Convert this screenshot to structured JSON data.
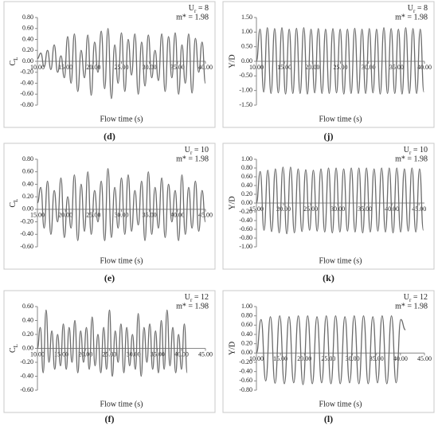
{
  "chart_data": [
    {
      "type": "line",
      "panel_label": "(d)",
      "annotation_ur": {
        "symbol": "U",
        "subscript": "r",
        "value_text": " = 8"
      },
      "annotation_mass": "m* = 1.98",
      "ylabel": {
        "symbol": "C",
        "subscript": "L"
      },
      "xlabel": "Flow time (s)",
      "xlim": [
        10,
        40
      ],
      "ylim": [
        -0.8,
        0.8
      ],
      "xticks": [
        {
          "value": 10,
          "label": "10.00"
        },
        {
          "value": 15,
          "label": "15.00"
        },
        {
          "value": 20,
          "label": "20.00"
        },
        {
          "value": 25,
          "label": "25.00"
        },
        {
          "value": 30,
          "label": "30.00"
        },
        {
          "value": 35,
          "label": "35.00"
        },
        {
          "value": 40,
          "label": "40.00"
        }
      ],
      "yticks": [
        {
          "value": -0.8,
          "label": "-0.80"
        },
        {
          "value": -0.6,
          "label": "-0.60"
        },
        {
          "value": -0.4,
          "label": "-0.40"
        },
        {
          "value": -0.2,
          "label": "-0.20"
        },
        {
          "value": 0,
          "label": "0.00"
        },
        {
          "value": 0.2,
          "label": "0.20"
        },
        {
          "value": 0.4,
          "label": "0.40"
        },
        {
          "value": 0.6,
          "label": "0.60"
        },
        {
          "value": 0.8,
          "label": "0.80"
        }
      ],
      "color": "#6b6b6b",
      "x": [
        10,
        10.6,
        11.2,
        11.8,
        12.4,
        13,
        13.6,
        14.2,
        14.8,
        15.4,
        16,
        16.6,
        17.2,
        17.8,
        18.4,
        19,
        19.6,
        20.2,
        20.8,
        21.4,
        22,
        22.6,
        23.2,
        23.8,
        24.4,
        25,
        25.6,
        26.2,
        26.8,
        27.4,
        28,
        28.6,
        29.2,
        29.8,
        30.4,
        31,
        31.6,
        32.2,
        32.8,
        33.4,
        34,
        34.6,
        35.2,
        35.8,
        36.4,
        37,
        37.6,
        38.2,
        38.8,
        39.4,
        40
      ],
      "values": [
        0.05,
        0.15,
        -0.1,
        0.2,
        -0.15,
        0.3,
        -0.2,
        0.1,
        -0.3,
        0.45,
        -0.4,
        0.5,
        -0.55,
        0.2,
        -0.3,
        0.48,
        -0.62,
        0.35,
        -0.2,
        0.55,
        -0.5,
        0.6,
        -0.68,
        0.3,
        -0.4,
        0.52,
        -0.55,
        0.4,
        -0.25,
        0.5,
        -0.6,
        0.35,
        -0.45,
        0.48,
        -0.3,
        0.2,
        -0.35,
        0.5,
        -0.55,
        0.45,
        -0.3,
        0.52,
        -0.6,
        0.3,
        -0.4,
        0.5,
        -0.58,
        0.42,
        -0.2,
        0.35,
        -0.4
      ]
    },
    {
      "type": "line",
      "panel_label": "(j)",
      "annotation_ur": {
        "symbol": "U",
        "subscript": "r",
        "value_text": " = 8"
      },
      "annotation_mass": "m* = 1.98",
      "ylabel": "Y/D",
      "xlabel": "Flow time (s)",
      "xlim": [
        10,
        40
      ],
      "ylim": [
        -1.5,
        1.5
      ],
      "xticks": [
        {
          "value": 10,
          "label": "10.00"
        },
        {
          "value": 15,
          "label": "15.00"
        },
        {
          "value": 20,
          "label": "20.00"
        },
        {
          "value": 25,
          "label": "25.00"
        },
        {
          "value": 30,
          "label": "30.00"
        },
        {
          "value": 35,
          "label": "35.00"
        },
        {
          "value": 40,
          "label": "40.00"
        }
      ],
      "yticks": [
        {
          "value": -1.5,
          "label": "-1.50"
        },
        {
          "value": -1,
          "label": "-1.00"
        },
        {
          "value": -0.5,
          "label": "-0.50"
        },
        {
          "value": 0,
          "label": "0.00"
        },
        {
          "value": 0.5,
          "label": "0.50"
        },
        {
          "value": 1,
          "label": "1.00"
        },
        {
          "value": 1.5,
          "label": "1.50"
        }
      ],
      "color": "#6b6b6b",
      "x": [
        10,
        10.65,
        11.3,
        11.95,
        12.6,
        13.25,
        13.9,
        14.55,
        15.2,
        15.85,
        16.5,
        17.15,
        17.8,
        18.45,
        19.1,
        19.75,
        20.4,
        21.05,
        21.7,
        22.35,
        23,
        23.65,
        24.3,
        24.95,
        25.6,
        26.25,
        26.9,
        27.55,
        28.2,
        28.85,
        29.5,
        30.15,
        30.8,
        31.45,
        32.1,
        32.75,
        33.4,
        34.05,
        34.7,
        35.35,
        36,
        36.65,
        37.3,
        37.95,
        38.6,
        39.25,
        39.9
      ],
      "values": [
        0,
        1.1,
        -1.05,
        1.15,
        -1.1,
        1.12,
        -1.08,
        1.15,
        -1.12,
        1.1,
        -1.1,
        1.13,
        -1.1,
        1.15,
        -1.12,
        1.1,
        -1.08,
        1.12,
        -1.1,
        1.1,
        -1.1,
        1.12,
        -1.08,
        1.1,
        -1.12,
        1.1,
        -1.1,
        1.13,
        -1.1,
        1.1,
        -1.1,
        1.12,
        -1.08,
        1.1,
        -1.12,
        1.15,
        -1.1,
        1.12,
        -1.1,
        1.1,
        -1.12,
        1.15,
        -1.1,
        1.12,
        -1.1,
        1.1,
        -1.05
      ]
    },
    {
      "type": "line",
      "panel_label": "(e)",
      "annotation_ur": {
        "symbol": "U",
        "subscript": "r",
        "value_text": " = 10"
      },
      "annotation_mass": "m* = 1.98",
      "ylabel": {
        "symbol": "C",
        "subscript": "L"
      },
      "xlabel": "Flow time (s)",
      "xlim": [
        15,
        45
      ],
      "ylim": [
        -0.6,
        0.8
      ],
      "xticks": [
        {
          "value": 15,
          "label": "15.00"
        },
        {
          "value": 20,
          "label": "20.00"
        },
        {
          "value": 25,
          "label": "25.00"
        },
        {
          "value": 30,
          "label": "30.00"
        },
        {
          "value": 35,
          "label": "35.00"
        },
        {
          "value": 40,
          "label": "40.00"
        },
        {
          "value": 45,
          "label": "45.00"
        }
      ],
      "yticks": [
        {
          "value": -0.6,
          "label": "-0.60"
        },
        {
          "value": -0.4,
          "label": "-0.40"
        },
        {
          "value": -0.2,
          "label": "-0.20"
        },
        {
          "value": 0,
          "label": "0.00"
        },
        {
          "value": 0.2,
          "label": "0.20"
        },
        {
          "value": 0.4,
          "label": "0.40"
        },
        {
          "value": 0.6,
          "label": "0.60"
        },
        {
          "value": 0.8,
          "label": "0.80"
        }
      ],
      "color": "#6b6b6b",
      "x": [
        15,
        15.6,
        16.2,
        16.8,
        17.4,
        18,
        18.6,
        19.2,
        19.8,
        20.4,
        21,
        21.6,
        22.2,
        22.8,
        23.4,
        24,
        24.6,
        25.2,
        25.8,
        26.4,
        27,
        27.6,
        28.2,
        28.8,
        29.4,
        30,
        30.6,
        31.2,
        31.8,
        32.4,
        33,
        33.6,
        34.2,
        34.8,
        35.4,
        36,
        36.6,
        37.2,
        37.8,
        38.4,
        39,
        39.6,
        40.2,
        40.8,
        41.4,
        42,
        42.6,
        43.2,
        43.8,
        44.4,
        45
      ],
      "values": [
        0.1,
        0.35,
        -0.3,
        0.45,
        -0.4,
        0.3,
        -0.2,
        0.5,
        -0.45,
        0.2,
        -0.3,
        0.55,
        -0.5,
        0.4,
        -0.35,
        0.6,
        -0.4,
        0.3,
        -0.2,
        0.45,
        -0.5,
        0.65,
        -0.45,
        0.35,
        -0.3,
        0.5,
        -0.4,
        0.55,
        -0.35,
        0.3,
        -0.25,
        0.45,
        -0.5,
        0.6,
        -0.4,
        0.35,
        -0.3,
        0.5,
        -0.45,
        0.4,
        -0.2,
        0.3,
        -0.5,
        0.55,
        -0.4,
        0.35,
        -0.3,
        0.45,
        -0.35,
        0.3,
        -0.2
      ]
    },
    {
      "type": "line",
      "panel_label": "(k)",
      "annotation_ur": {
        "symbol": "U",
        "subscript": "r",
        "value_text": " = 10"
      },
      "annotation_mass": "m* = 1.98",
      "ylabel": "Y/D",
      "xlabel": "Flow time (s)",
      "xlim": [
        15,
        46
      ],
      "ylim": [
        -1,
        1
      ],
      "xticks": [
        {
          "value": 15,
          "label": "15.00"
        },
        {
          "value": 20,
          "label": "20.00"
        },
        {
          "value": 25,
          "label": "25.00"
        },
        {
          "value": 30,
          "label": "30.00"
        },
        {
          "value": 35,
          "label": "35.00"
        },
        {
          "value": 40,
          "label": "40.00"
        },
        {
          "value": 45,
          "label": "45.00"
        }
      ],
      "yticks": [
        {
          "value": -1,
          "label": "-1.00"
        },
        {
          "value": -0.8,
          "label": "-0.80"
        },
        {
          "value": -0.6,
          "label": "-0.60"
        },
        {
          "value": -0.4,
          "label": "-0.40"
        },
        {
          "value": -0.2,
          "label": "-0.20"
        },
        {
          "value": 0,
          "label": "0.00"
        },
        {
          "value": 0.2,
          "label": "0.20"
        },
        {
          "value": 0.4,
          "label": "0.40"
        },
        {
          "value": 0.6,
          "label": "0.60"
        },
        {
          "value": 0.8,
          "label": "0.80"
        },
        {
          "value": 1,
          "label": "1.00"
        }
      ],
      "color": "#6b6b6b",
      "x": [
        15,
        15.7,
        16.4,
        17.1,
        17.8,
        18.5,
        19.2,
        19.9,
        20.6,
        21.3,
        22,
        22.7,
        23.4,
        24.1,
        24.8,
        25.5,
        26.2,
        26.9,
        27.6,
        28.3,
        29,
        29.7,
        30.4,
        31.1,
        31.8,
        32.5,
        33.2,
        33.9,
        34.6,
        35.3,
        36,
        36.7,
        37.4,
        38.1,
        38.8,
        39.5,
        40.2,
        40.9,
        41.6,
        42.3,
        43,
        43.7,
        44.4,
        45.1,
        45.8
      ],
      "values": [
        0,
        0.72,
        -0.62,
        0.75,
        -0.65,
        0.78,
        -0.68,
        0.82,
        -0.7,
        0.82,
        -0.68,
        0.78,
        -0.65,
        0.76,
        -0.62,
        0.75,
        -0.64,
        0.78,
        -0.66,
        0.8,
        -0.68,
        0.8,
        -0.66,
        0.78,
        -0.64,
        0.8,
        -0.66,
        0.8,
        -0.68,
        0.8,
        -0.66,
        0.78,
        -0.64,
        0.8,
        -0.66,
        0.8,
        -0.68,
        0.8,
        -0.66,
        0.78,
        -0.64,
        0.8,
        -0.66,
        0.78,
        -0.62
      ]
    },
    {
      "type": "line",
      "panel_label": "(f)",
      "annotation_ur": {
        "symbol": "U",
        "subscript": "r",
        "value_text": " = 12"
      },
      "annotation_mass": "m* = 1.98",
      "ylabel": {
        "symbol": "C",
        "subscript": "L"
      },
      "xlabel": "Flow time (s)",
      "xlim": [
        10,
        45
      ],
      "ylim": [
        -0.6,
        0.6
      ],
      "xticks": [
        {
          "value": 10,
          "label": "10.00"
        },
        {
          "value": 15,
          "label": "15.00"
        },
        {
          "value": 20,
          "label": "20.00"
        },
        {
          "value": 25,
          "label": "25.00"
        },
        {
          "value": 30,
          "label": "30.00"
        },
        {
          "value": 35,
          "label": "35.00"
        },
        {
          "value": 40,
          "label": "40.00"
        },
        {
          "value": 45,
          "label": "45.00"
        }
      ],
      "yticks": [
        {
          "value": -0.6,
          "label": "-0.60"
        },
        {
          "value": -0.4,
          "label": "-0.40"
        },
        {
          "value": -0.2,
          "label": "-0.20"
        },
        {
          "value": 0,
          "label": "0.00"
        },
        {
          "value": 0.2,
          "label": "0.20"
        },
        {
          "value": 0.4,
          "label": "0.40"
        },
        {
          "value": 0.6,
          "label": "0.60"
        }
      ],
      "color": "#6b6b6b",
      "x": [
        10,
        10.6,
        11.2,
        11.8,
        12.4,
        13,
        13.6,
        14.2,
        14.8,
        15.4,
        16,
        16.6,
        17.2,
        17.8,
        18.4,
        19,
        19.6,
        20.2,
        20.8,
        21.4,
        22,
        22.6,
        23.2,
        23.8,
        24.4,
        25,
        25.6,
        26.2,
        26.8,
        27.4,
        28,
        28.6,
        29.2,
        29.8,
        30.4,
        31,
        31.6,
        32.2,
        32.8,
        33.4,
        34,
        34.6,
        35.2,
        35.8,
        36.4,
        37,
        37.6,
        38.2,
        38.8,
        39.4,
        40,
        40.6,
        41.2
      ],
      "values": [
        0,
        0.3,
        -0.35,
        0.55,
        -0.2,
        0.25,
        -0.3,
        0.2,
        -0.25,
        0.35,
        -0.3,
        0.3,
        -0.2,
        0.4,
        -0.35,
        0.25,
        -0.2,
        0.3,
        -0.3,
        0.45,
        -0.25,
        0.2,
        -0.35,
        0.3,
        -0.3,
        0.55,
        -0.4,
        0.25,
        -0.2,
        0.35,
        -0.35,
        0.3,
        -0.25,
        0.2,
        -0.3,
        0.5,
        -0.4,
        0.3,
        -0.2,
        0.35,
        -0.3,
        0.25,
        -0.35,
        0.4,
        -0.3,
        0.55,
        -0.25,
        0.3,
        -0.35,
        0.2,
        -0.3,
        0.35,
        -0.35
      ]
    },
    {
      "type": "line",
      "panel_label": "(l)",
      "annotation_ur": {
        "symbol": "U",
        "subscript": "r",
        "value_text": " = 12"
      },
      "annotation_mass": "m* = 1.98",
      "ylabel": "Y/D",
      "xlabel": "Flow time (s)",
      "xlim": [
        10,
        45
      ],
      "ylim": [
        -0.8,
        1
      ],
      "xticks": [
        {
          "value": 10,
          "label": "10.00"
        },
        {
          "value": 15,
          "label": "15.00"
        },
        {
          "value": 20,
          "label": "20.00"
        },
        {
          "value": 25,
          "label": "25.00"
        },
        {
          "value": 30,
          "label": "30.00"
        },
        {
          "value": 35,
          "label": "35.00"
        },
        {
          "value": 40,
          "label": "40.00"
        },
        {
          "value": 45,
          "label": "45.00"
        }
      ],
      "yticks": [
        {
          "value": -0.8,
          "label": "-0.80"
        },
        {
          "value": -0.6,
          "label": "-0.60"
        },
        {
          "value": -0.4,
          "label": "-0.40"
        },
        {
          "value": -0.2,
          "label": "-0.20"
        },
        {
          "value": 0,
          "label": "0.00"
        },
        {
          "value": 0.2,
          "label": "0.20"
        },
        {
          "value": 0.4,
          "label": "0.40"
        },
        {
          "value": 0.6,
          "label": "0.60"
        },
        {
          "value": 0.8,
          "label": "0.80"
        },
        {
          "value": 1,
          "label": "1.00"
        }
      ],
      "color": "#6b6b6b",
      "x": [
        10,
        10.97,
        11.94,
        12.91,
        13.88,
        14.85,
        15.82,
        16.79,
        17.76,
        18.73,
        19.7,
        20.67,
        21.64,
        22.61,
        23.58,
        24.55,
        25.52,
        26.49,
        27.46,
        28.43,
        29.4,
        30.37,
        31.34,
        32.31,
        33.28,
        34.25,
        35.22,
        36.19,
        37.16,
        38.13,
        39.1,
        40.07,
        41.04
      ],
      "values": [
        0,
        0.72,
        -0.6,
        0.78,
        -0.65,
        0.8,
        -0.66,
        0.78,
        -0.64,
        0.8,
        -0.68,
        0.8,
        -0.66,
        0.78,
        -0.64,
        0.8,
        -0.66,
        0.8,
        -0.66,
        0.78,
        -0.64,
        0.8,
        -0.66,
        0.8,
        -0.66,
        0.78,
        -0.64,
        0.8,
        -0.66,
        0.8,
        -0.64,
        0.72,
        0.5
      ]
    }
  ]
}
